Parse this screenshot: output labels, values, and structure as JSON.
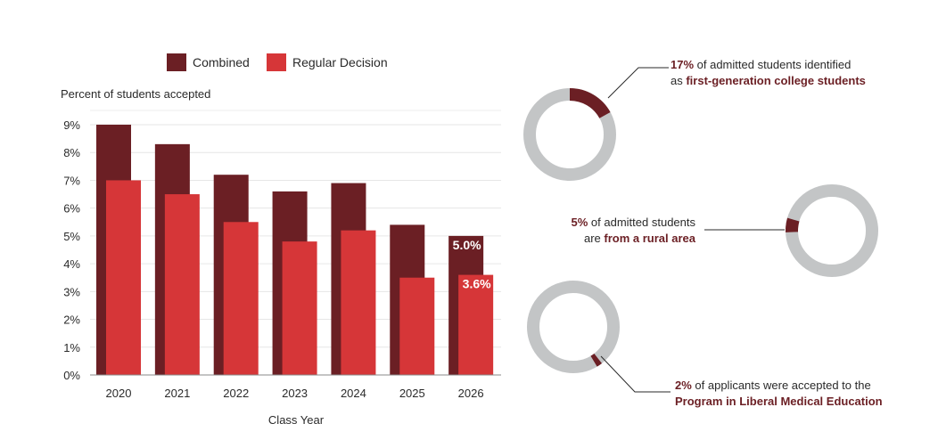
{
  "chart_data": [
    {
      "type": "bar",
      "ylabel": "Percent of students accepted",
      "xlabel": "Class Year",
      "categories": [
        "2020",
        "2021",
        "2022",
        "2023",
        "2024",
        "2025",
        "2026"
      ],
      "ylim": [
        0,
        9
      ],
      "yticks": [
        "0%",
        "1%",
        "2%",
        "3%",
        "4%",
        "5%",
        "6%",
        "7%",
        "8%",
        "9%"
      ],
      "grid": true,
      "legend_position": "top",
      "series": [
        {
          "name": "Combined",
          "color": "#6b1f24",
          "values": [
            9.0,
            8.3,
            7.2,
            6.6,
            6.9,
            5.4,
            5.0
          ]
        },
        {
          "name": "Regular Decision",
          "color": "#d63638",
          "values": [
            7.0,
            6.5,
            5.5,
            4.8,
            5.2,
            3.5,
            3.6
          ]
        }
      ],
      "data_labels": [
        {
          "series": "Combined",
          "category": "2026",
          "text": "5.0%"
        },
        {
          "series": "Regular Decision",
          "category": "2026",
          "text": "3.6%"
        }
      ]
    },
    {
      "type": "pie",
      "style": "donut",
      "value": 17,
      "colors": {
        "slice": "#6b1f24",
        "rest": "#c3c5c6"
      },
      "pct_text": "17%",
      "text_before": " of admitted students identified",
      "text_line2_pre": "as ",
      "highlight": "first-generation college students"
    },
    {
      "type": "pie",
      "style": "donut",
      "value": 5,
      "colors": {
        "slice": "#6b1f24",
        "rest": "#c3c5c6"
      },
      "pct_text": "5%",
      "text_before": " of admitted students",
      "text_line2_pre": "are ",
      "highlight": "from a rural area"
    },
    {
      "type": "pie",
      "style": "donut",
      "value": 2,
      "colors": {
        "slice": "#6b1f24",
        "rest": "#c3c5c6"
      },
      "pct_text": "2%",
      "text_before": " of applicants were accepted to the",
      "text_line2_pre": "",
      "highlight": "Program in Liberal Medical Education"
    }
  ]
}
